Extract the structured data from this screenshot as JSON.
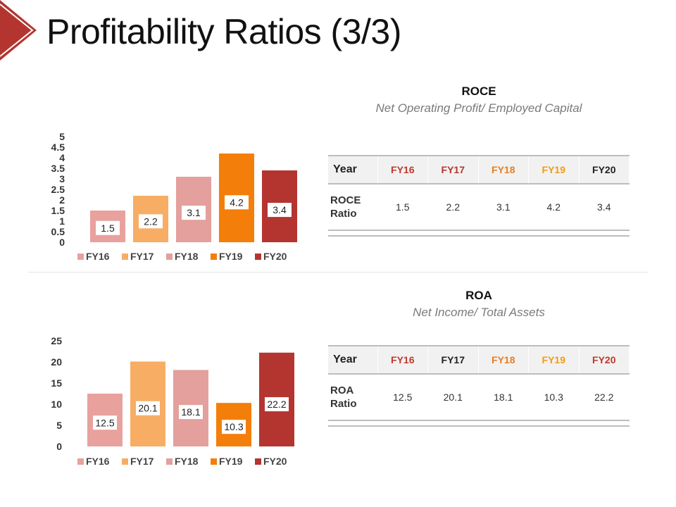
{
  "title": "Profitability Ratios (3/3)",
  "colors": {
    "accent": "#b43530",
    "FY16": "#e8a19d",
    "FY17": "#f8ad64",
    "FY18": "#e3a09d",
    "FY19": "#f47e0a",
    "FY20": "#b43530"
  },
  "roce": {
    "heading": "ROCE",
    "subheading": "Net Operating Profit/ Employed Capital",
    "table": {
      "year_label": "Year",
      "years": [
        "FY16",
        "FY17",
        "FY18",
        "FY19",
        "FY20"
      ],
      "header_colors": [
        "#c0392b",
        "#b43530",
        "#e67e22",
        "#f39c12",
        "#222222"
      ],
      "row_label_line1": "ROCE",
      "row_label_line2": "Ratio",
      "values": [
        "1.5",
        "2.2",
        "3.1",
        "4.2",
        "3.4"
      ]
    }
  },
  "roa": {
    "heading": "ROA",
    "subheading": "Net Income/ Total Assets",
    "table": {
      "year_label": "Year",
      "years": [
        "FY16",
        "FY17",
        "FY18",
        "FY19",
        "FY20"
      ],
      "header_colors": [
        "#c0392b",
        "#222222",
        "#e67e22",
        "#f39c12",
        "#c0392b"
      ],
      "row_label_line1": "ROA",
      "row_label_line2": "Ratio",
      "values": [
        "12.5",
        "20.1",
        "18.1",
        "10.3",
        "22.2"
      ]
    }
  },
  "chart_data": [
    {
      "type": "bar",
      "title": "ROCE",
      "categories": [
        "FY16",
        "FY17",
        "FY18",
        "FY19",
        "FY20"
      ],
      "values": [
        1.5,
        2.2,
        3.1,
        4.2,
        3.4
      ],
      "ylim": [
        0,
        5
      ],
      "yticks": [
        "0",
        "0.5",
        "1",
        "1.5",
        "2",
        "2.5",
        "3",
        "3.5",
        "4",
        "4.5",
        "5"
      ],
      "legend": [
        "FY16",
        "FY17",
        "FY18",
        "FY19",
        "FY20"
      ],
      "legend_position": "bottom",
      "grid": false
    },
    {
      "type": "bar",
      "title": "ROA",
      "categories": [
        "FY16",
        "FY17",
        "FY18",
        "FY19",
        "FY20"
      ],
      "values": [
        12.5,
        20.1,
        18.1,
        10.3,
        22.2
      ],
      "ylim": [
        0,
        25
      ],
      "yticks": [
        "0",
        "5",
        "10",
        "15",
        "20",
        "25"
      ],
      "legend": [
        "FY16",
        "FY17",
        "FY18",
        "FY19",
        "FY20"
      ],
      "legend_position": "bottom",
      "grid": false
    }
  ]
}
